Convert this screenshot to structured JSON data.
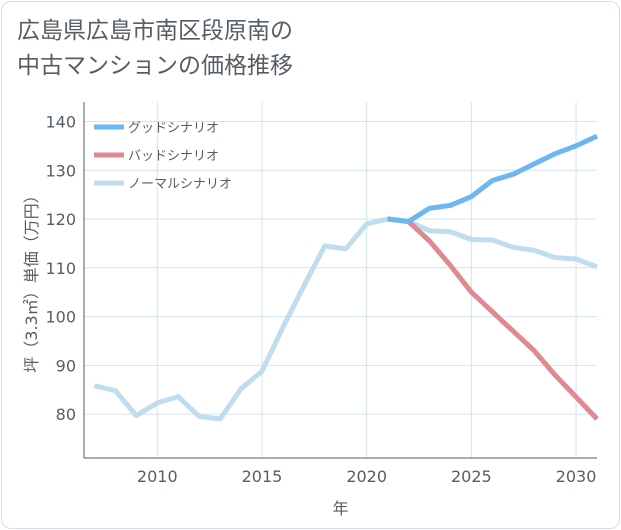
{
  "title_lines": [
    "広島県広島市南区段原南の",
    "中古マンションの価格推移"
  ],
  "chart_data": {
    "type": "line",
    "title": "広島県広島市南区段原南の中古マンションの価格推移",
    "xlabel": "年",
    "ylabel": "坪（3.3㎡）単価（万円）",
    "xlim": [
      2006.5,
      2031
    ],
    "ylim": [
      71,
      144
    ],
    "xticks": [
      2010,
      2015,
      2020,
      2025,
      2030
    ],
    "yticks": [
      80,
      90,
      100,
      110,
      120,
      130,
      140
    ],
    "grid": true,
    "legend_position": "top-left",
    "series": [
      {
        "name": "グッドシナリオ",
        "color": "#6cb7ef",
        "points": [
          [
            2021,
            120.0
          ],
          [
            2022,
            119.5
          ],
          [
            2023,
            122.2
          ],
          [
            2024,
            122.8
          ],
          [
            2025,
            124.6
          ],
          [
            2026,
            127.9
          ],
          [
            2027,
            129.2
          ],
          [
            2028,
            131.3
          ],
          [
            2029,
            133.4
          ],
          [
            2030,
            135.0
          ],
          [
            2031,
            137.0
          ]
        ]
      },
      {
        "name": "バッドシナリオ",
        "color": "#de8a90",
        "points": [
          [
            2021,
            120.0
          ],
          [
            2022,
            119.5
          ],
          [
            2023,
            115.5
          ],
          [
            2024,
            110.5
          ],
          [
            2025,
            105.0
          ],
          [
            2026,
            101.0
          ],
          [
            2027,
            97.0
          ],
          [
            2028,
            93.0
          ],
          [
            2029,
            88.0
          ],
          [
            2030,
            83.5
          ],
          [
            2031,
            79.0
          ]
        ]
      },
      {
        "name": "ノーマルシナリオ",
        "color": "#c0dded",
        "points": [
          [
            2007,
            85.8
          ],
          [
            2008,
            84.8
          ],
          [
            2009,
            79.7
          ],
          [
            2010,
            82.3
          ],
          [
            2011,
            83.6
          ],
          [
            2012,
            79.5
          ],
          [
            2013,
            79.0
          ],
          [
            2014,
            85.2
          ],
          [
            2015,
            88.8
          ],
          [
            2016,
            97.8
          ],
          [
            2017,
            106.3
          ],
          [
            2018,
            114.5
          ],
          [
            2019,
            113.9
          ],
          [
            2020,
            119.0
          ],
          [
            2021,
            120.0
          ],
          [
            2022,
            119.5
          ],
          [
            2023,
            117.6
          ],
          [
            2024,
            117.4
          ],
          [
            2025,
            115.8
          ],
          [
            2026,
            115.7
          ],
          [
            2027,
            114.2
          ],
          [
            2028,
            113.6
          ],
          [
            2029,
            112.1
          ],
          [
            2030,
            111.8
          ],
          [
            2031,
            110.2
          ]
        ]
      }
    ]
  }
}
